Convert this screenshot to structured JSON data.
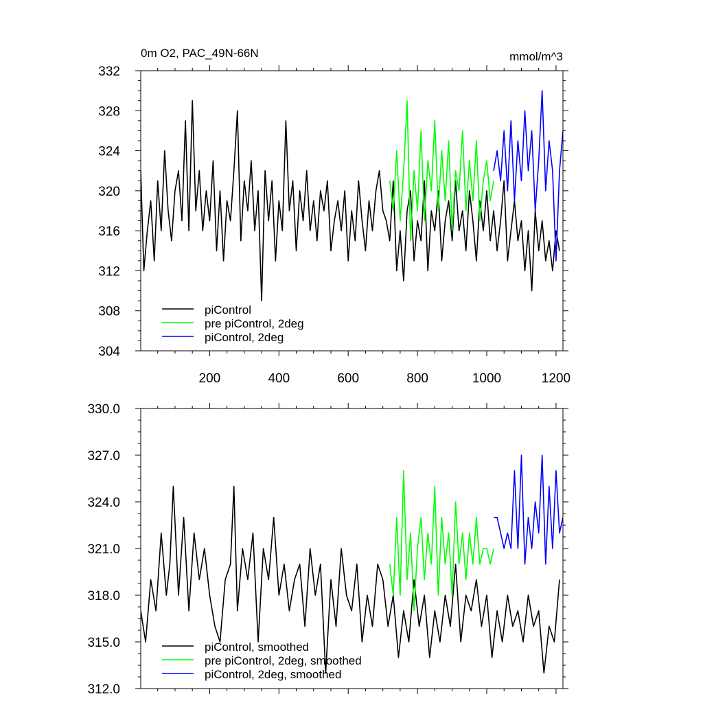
{
  "chart_data": [
    {
      "type": "line",
      "title": "0m O2, PAC_49N-66N",
      "units": "mmol/m^3",
      "xlabel": "",
      "ylabel": "",
      "xlim": [
        1,
        1220
      ],
      "ylim": [
        304,
        332
      ],
      "xticks": [
        200,
        400,
        600,
        800,
        1000,
        1200
      ],
      "xtick_labels": [
        "200",
        "400",
        "600",
        "800",
        "1000",
        "1200"
      ],
      "yticks": [
        304,
        308,
        312,
        316,
        320,
        324,
        328,
        332
      ],
      "ytick_labels": [
        "304",
        "308",
        "312",
        "316",
        "320",
        "324",
        "328",
        "332"
      ],
      "legend_position": "bottom-left",
      "series": [
        {
          "name": "piControl",
          "color": "#000000",
          "x": [
            1,
            10,
            20,
            30,
            40,
            50,
            60,
            70,
            80,
            90,
            100,
            110,
            120,
            130,
            140,
            150,
            160,
            170,
            180,
            190,
            200,
            210,
            220,
            230,
            240,
            250,
            260,
            270,
            280,
            290,
            300,
            310,
            320,
            330,
            340,
            350,
            360,
            370,
            380,
            390,
            400,
            410,
            420,
            430,
            440,
            450,
            460,
            470,
            480,
            490,
            500,
            510,
            520,
            530,
            540,
            550,
            560,
            570,
            580,
            590,
            600,
            610,
            620,
            630,
            640,
            650,
            660,
            670,
            680,
            690,
            700,
            710,
            720,
            730,
            740,
            750,
            760,
            770,
            780,
            790,
            800,
            810,
            820,
            830,
            840,
            850,
            860,
            870,
            880,
            890,
            900,
            910,
            920,
            930,
            940,
            950,
            960,
            970,
            980,
            990,
            1000,
            1010,
            1020,
            1030,
            1040,
            1050,
            1060,
            1070,
            1080,
            1090,
            1100,
            1110,
            1120,
            1130,
            1140,
            1150,
            1160,
            1170,
            1180,
            1190,
            1200,
            1210
          ],
          "values": [
            322,
            312,
            316,
            319,
            313,
            321,
            316,
            324,
            318,
            315,
            320,
            322,
            317,
            327,
            316,
            329,
            318,
            322,
            316,
            320,
            317,
            323,
            314,
            320,
            313,
            319,
            317,
            322,
            328,
            315,
            321,
            318,
            323,
            316,
            320,
            309,
            322,
            317,
            321,
            313,
            319,
            316,
            327,
            318,
            321,
            314,
            320,
            317,
            322,
            316,
            319,
            315,
            320,
            318,
            321,
            314,
            317,
            319,
            316,
            320,
            313,
            318,
            315,
            321,
            317,
            314,
            319,
            316,
            320,
            322,
            318,
            317,
            315,
            321,
            312,
            316,
            311,
            318,
            320,
            313,
            317,
            315,
            321,
            312,
            318,
            316,
            320,
            313,
            317,
            319,
            315,
            321,
            316,
            318,
            314,
            320,
            317,
            313,
            319,
            316,
            320,
            315,
            318,
            314,
            317,
            321,
            313,
            316,
            319,
            315,
            317,
            312,
            316,
            310,
            318,
            314,
            317,
            313,
            315,
            312,
            316,
            314
          ]
        },
        {
          "name": "pre piControl, 2deg",
          "color": "#00ff00",
          "x": [
            720,
            730,
            740,
            750,
            760,
            770,
            780,
            790,
            800,
            810,
            820,
            830,
            840,
            850,
            860,
            870,
            880,
            890,
            900,
            910,
            920,
            930,
            940,
            950,
            960,
            970,
            980,
            990,
            1000,
            1010,
            1020
          ],
          "values": [
            321,
            318,
            324,
            317,
            322,
            329,
            315,
            322,
            318,
            326,
            317,
            323,
            320,
            327,
            318,
            324,
            319,
            325,
            316,
            322,
            320,
            326,
            318,
            323,
            319,
            325,
            317,
            321,
            323,
            319,
            321
          ]
        },
        {
          "name": "piControl, 2deg",
          "color": "#0000ff",
          "x": [
            1020,
            1030,
            1040,
            1050,
            1060,
            1070,
            1080,
            1090,
            1100,
            1110,
            1120,
            1130,
            1140,
            1150,
            1160,
            1170,
            1180,
            1190,
            1200,
            1210,
            1220
          ],
          "values": [
            322,
            324,
            321,
            326,
            320,
            327,
            319,
            325,
            321,
            328,
            322,
            326,
            318,
            323,
            330,
            320,
            325,
            322,
            313,
            322,
            326
          ]
        }
      ]
    },
    {
      "type": "line",
      "title": "",
      "xlabel": "",
      "ylabel": "",
      "xlim": [
        1,
        1220
      ],
      "ylim": [
        312,
        330
      ],
      "xticks": [
        200,
        400,
        600,
        800,
        1000,
        1200
      ],
      "xtick_labels": [],
      "yticks": [
        312,
        315,
        318,
        321,
        324,
        327,
        330
      ],
      "ytick_labels": [
        "312.0",
        "315.0",
        "318.0",
        "321.0",
        "324.0",
        "327.0",
        "330.0"
      ],
      "legend_position": "bottom-left",
      "series": [
        {
          "name": "piControl, smoothed",
          "color": "#000000",
          "x": [
            1,
            15,
            30,
            45,
            60,
            75,
            85,
            95,
            110,
            125,
            140,
            155,
            170,
            185,
            200,
            215,
            230,
            245,
            260,
            270,
            280,
            295,
            310,
            325,
            340,
            355,
            370,
            385,
            400,
            415,
            430,
            445,
            460,
            475,
            490,
            505,
            520,
            535,
            550,
            565,
            580,
            595,
            610,
            625,
            640,
            655,
            670,
            685,
            700,
            715,
            730,
            745,
            760,
            775,
            790,
            805,
            820,
            835,
            850,
            865,
            880,
            895,
            910,
            925,
            940,
            955,
            970,
            985,
            1000,
            1015,
            1030,
            1045,
            1060,
            1075,
            1090,
            1105,
            1120,
            1135,
            1150,
            1165,
            1180,
            1195,
            1210
          ],
          "values": [
            317,
            315,
            319,
            317,
            322,
            318,
            320,
            325,
            318,
            323,
            317,
            322,
            319,
            321,
            318,
            316,
            315,
            319,
            320,
            325,
            317,
            321,
            319,
            322,
            315,
            321,
            319,
            323,
            318,
            320,
            317,
            319,
            320,
            316,
            321,
            318,
            320,
            313,
            319,
            316,
            321,
            318,
            317,
            320,
            315,
            318,
            316,
            320,
            319,
            316,
            318,
            314,
            317,
            315,
            319,
            316,
            318,
            314,
            317,
            315,
            318,
            316,
            320,
            315,
            318,
            317,
            319,
            316,
            318,
            314,
            317,
            315,
            318,
            316,
            317,
            315,
            318,
            316,
            317,
            313,
            316,
            315,
            319
          ]
        },
        {
          "name": "pre piControl, 2deg, smoothed",
          "color": "#00ff00",
          "x": [
            720,
            730,
            740,
            750,
            760,
            770,
            780,
            790,
            800,
            810,
            820,
            830,
            840,
            850,
            860,
            870,
            880,
            890,
            900,
            910,
            920,
            930,
            940,
            950,
            960,
            970,
            980,
            990,
            1000,
            1010,
            1020
          ],
          "values": [
            320,
            318,
            323,
            318,
            326,
            319,
            322,
            317,
            321,
            323,
            319,
            322,
            320,
            325,
            318,
            323,
            320,
            322,
            318,
            324,
            320,
            322,
            319,
            322,
            320,
            323,
            320,
            321,
            321,
            320,
            321
          ]
        },
        {
          "name": "piControl, 2deg, smoothed",
          "color": "#0000ff",
          "x": [
            1020,
            1030,
            1040,
            1050,
            1060,
            1070,
            1080,
            1090,
            1100,
            1110,
            1120,
            1130,
            1140,
            1150,
            1160,
            1170,
            1180,
            1190,
            1200,
            1210,
            1220
          ],
          "values": [
            323,
            323,
            322,
            321,
            322,
            321,
            326,
            321,
            327,
            320,
            323,
            321,
            324,
            322,
            327,
            320,
            325,
            321,
            326,
            322,
            323
          ]
        }
      ]
    }
  ]
}
